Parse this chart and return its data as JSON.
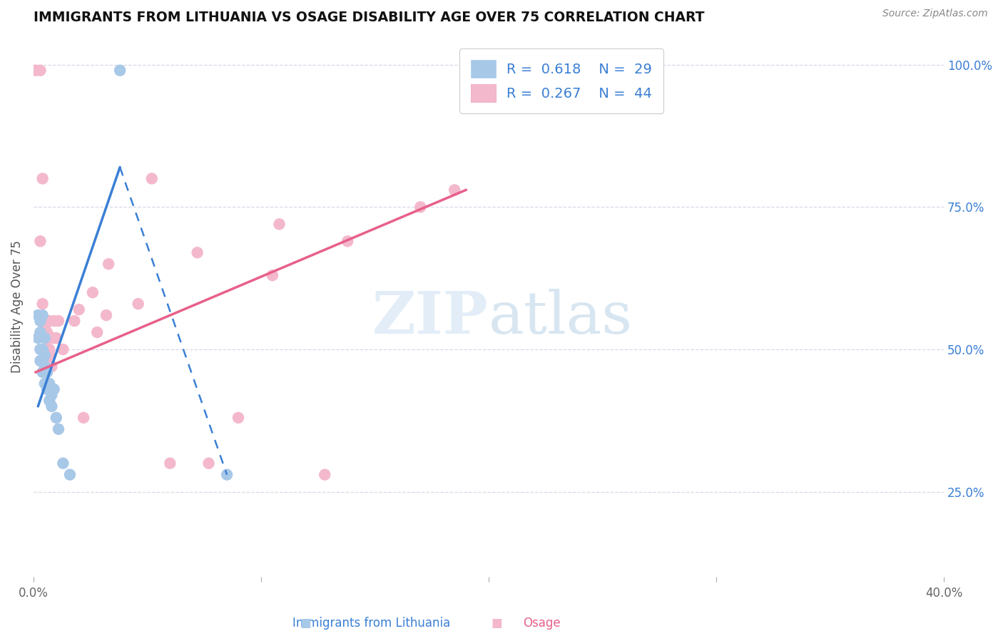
{
  "title": "IMMIGRANTS FROM LITHUANIA VS OSAGE DISABILITY AGE OVER 75 CORRELATION CHART",
  "source": "Source: ZipAtlas.com",
  "ylabel": "Disability Age Over 75",
  "xlim": [
    0.0,
    0.4
  ],
  "ylim": [
    0.1,
    1.05
  ],
  "xticks": [
    0.0,
    0.1,
    0.2,
    0.3,
    0.4
  ],
  "xticklabels": [
    "0.0%",
    "",
    "",
    "",
    "40.0%"
  ],
  "ytick_labels_right": [
    "100.0%",
    "75.0%",
    "50.0%",
    "25.0%"
  ],
  "ytick_vals_right": [
    1.0,
    0.75,
    0.5,
    0.25
  ],
  "legend_blue_R": "0.618",
  "legend_blue_N": "29",
  "legend_pink_R": "0.267",
  "legend_pink_N": "44",
  "blue_scatter_color": "#a8c8e8",
  "pink_scatter_color": "#f4b8cc",
  "blue_line_color": "#3a7fd5",
  "pink_line_color": "#e8608a",
  "grid_color": "#d8d8e8",
  "blue_scatter": [
    [
      0.002,
      0.56
    ],
    [
      0.002,
      0.52
    ],
    [
      0.003,
      0.55
    ],
    [
      0.003,
      0.5
    ],
    [
      0.003,
      0.48
    ],
    [
      0.003,
      0.53
    ],
    [
      0.004,
      0.56
    ],
    [
      0.004,
      0.48
    ],
    [
      0.004,
      0.5
    ],
    [
      0.004,
      0.46
    ],
    [
      0.005,
      0.52
    ],
    [
      0.005,
      0.49
    ],
    [
      0.005,
      0.44
    ],
    [
      0.005,
      0.47
    ],
    [
      0.006,
      0.46
    ],
    [
      0.006,
      0.44
    ],
    [
      0.006,
      0.43
    ],
    [
      0.007,
      0.44
    ],
    [
      0.007,
      0.41
    ],
    [
      0.007,
      0.43
    ],
    [
      0.008,
      0.42
    ],
    [
      0.008,
      0.4
    ],
    [
      0.009,
      0.43
    ],
    [
      0.01,
      0.38
    ],
    [
      0.011,
      0.36
    ],
    [
      0.013,
      0.3
    ],
    [
      0.016,
      0.28
    ],
    [
      0.038,
      0.99
    ],
    [
      0.085,
      0.28
    ]
  ],
  "pink_scatter": [
    [
      0.001,
      0.99
    ],
    [
      0.003,
      0.99
    ],
    [
      0.003,
      0.69
    ],
    [
      0.004,
      0.8
    ],
    [
      0.004,
      0.58
    ],
    [
      0.004,
      0.55
    ],
    [
      0.005,
      0.54
    ],
    [
      0.005,
      0.52
    ],
    [
      0.005,
      0.5
    ],
    [
      0.005,
      0.53
    ],
    [
      0.006,
      0.48
    ],
    [
      0.006,
      0.47
    ],
    [
      0.006,
      0.53
    ],
    [
      0.006,
      0.5
    ],
    [
      0.007,
      0.52
    ],
    [
      0.007,
      0.49
    ],
    [
      0.007,
      0.55
    ],
    [
      0.007,
      0.5
    ],
    [
      0.008,
      0.52
    ],
    [
      0.008,
      0.47
    ],
    [
      0.009,
      0.52
    ],
    [
      0.009,
      0.55
    ],
    [
      0.01,
      0.52
    ],
    [
      0.011,
      0.55
    ],
    [
      0.013,
      0.5
    ],
    [
      0.018,
      0.55
    ],
    [
      0.02,
      0.57
    ],
    [
      0.022,
      0.38
    ],
    [
      0.026,
      0.6
    ],
    [
      0.028,
      0.53
    ],
    [
      0.032,
      0.56
    ],
    [
      0.033,
      0.65
    ],
    [
      0.046,
      0.58
    ],
    [
      0.052,
      0.8
    ],
    [
      0.06,
      0.3
    ],
    [
      0.072,
      0.67
    ],
    [
      0.077,
      0.3
    ],
    [
      0.09,
      0.38
    ],
    [
      0.105,
      0.63
    ],
    [
      0.108,
      0.72
    ],
    [
      0.128,
      0.28
    ],
    [
      0.138,
      0.69
    ],
    [
      0.17,
      0.75
    ],
    [
      0.185,
      0.78
    ]
  ],
  "blue_trendline_solid": [
    [
      0.002,
      0.4
    ],
    [
      0.038,
      0.82
    ]
  ],
  "blue_trendline_dashed": [
    [
      0.038,
      0.82
    ],
    [
      0.085,
      0.28
    ]
  ],
  "pink_trendline": [
    [
      0.001,
      0.46
    ],
    [
      0.19,
      0.78
    ]
  ]
}
